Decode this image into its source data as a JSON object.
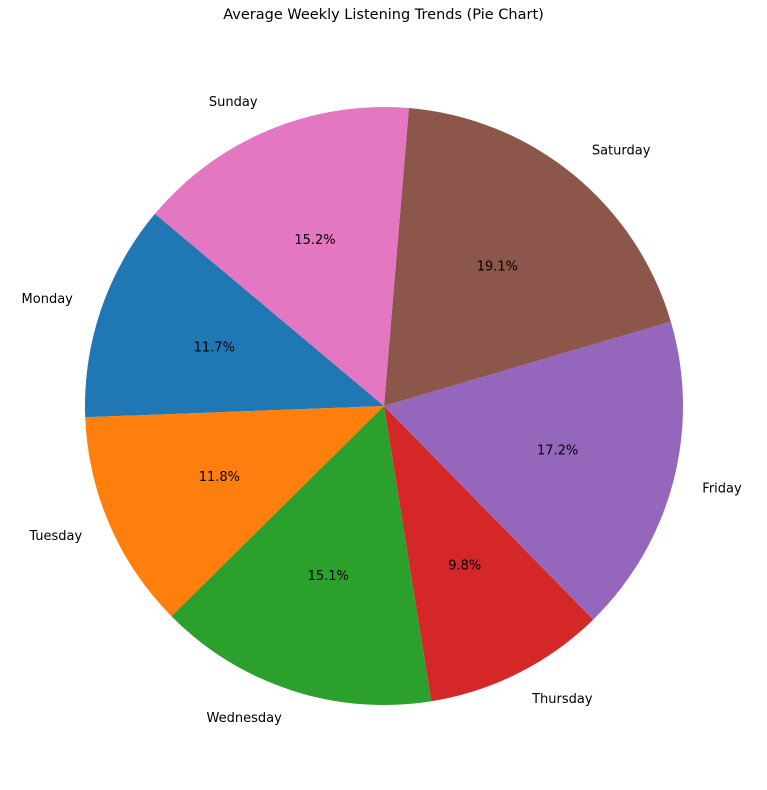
{
  "chart_data": {
    "type": "pie",
    "title": "Average Weekly Listening Trends (Pie Chart)",
    "start_angle_deg": 140,
    "direction": "counterclockwise",
    "slices": [
      {
        "label": "Monday",
        "value": 11.7,
        "pct_label": "11.7%",
        "color": "#1f77b4"
      },
      {
        "label": "Tuesday",
        "value": 11.8,
        "pct_label": "11.8%",
        "color": "#ff7f0e"
      },
      {
        "label": "Wednesday",
        "value": 15.1,
        "pct_label": "15.1%",
        "color": "#2ca02c"
      },
      {
        "label": "Thursday",
        "value": 9.8,
        "pct_label": "9.8%",
        "color": "#d62728"
      },
      {
        "label": "Friday",
        "value": 17.2,
        "pct_label": "17.2%",
        "color": "#9467bd"
      },
      {
        "label": "Saturday",
        "value": 19.1,
        "pct_label": "19.1%",
        "color": "#8c564b"
      },
      {
        "label": "Sunday",
        "value": 15.2,
        "pct_label": "15.2%",
        "color": "#e377c2"
      }
    ]
  }
}
